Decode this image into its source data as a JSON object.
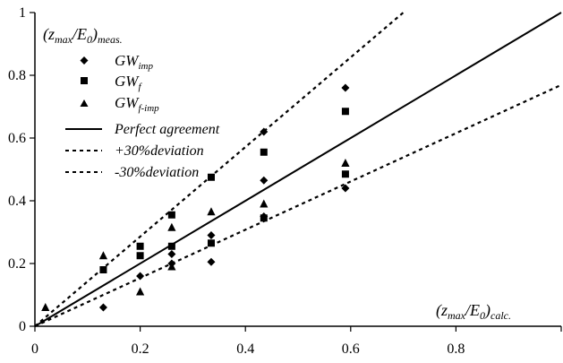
{
  "chart_data": {
    "type": "scatter",
    "xlim": [
      0,
      1
    ],
    "ylim": [
      0,
      1
    ],
    "grid": false,
    "legend_position": "top-left",
    "x_ticks": [
      "0",
      "0.2",
      "0.4",
      "0.6",
      "0.8"
    ],
    "x_tick_values": [
      0,
      0.2,
      0.4,
      0.6,
      0.8
    ],
    "y_ticks": [
      "0",
      "0.2",
      "0.4",
      "0.6",
      "0.8",
      "1"
    ],
    "y_tick_values": [
      0,
      0.2,
      0.4,
      0.6,
      0.8,
      1
    ],
    "ylabel": {
      "main": "(z",
      "sub1": "max",
      "mid": "/E",
      "sub2": "0",
      "close": ")",
      "sub3": "meas."
    },
    "xlabel": {
      "main": "(z",
      "sub1": "max",
      "mid": "/E",
      "sub2": "0",
      "close": ")",
      "sub3": "calc."
    },
    "series": [
      {
        "name": "GW",
        "name_sub": "imp",
        "marker": "diamond",
        "points": [
          [
            0.13,
            0.06
          ],
          [
            0.2,
            0.16
          ],
          [
            0.26,
            0.2
          ],
          [
            0.26,
            0.23
          ],
          [
            0.335,
            0.205
          ],
          [
            0.335,
            0.29
          ],
          [
            0.435,
            0.35
          ],
          [
            0.435,
            0.465
          ],
          [
            0.435,
            0.62
          ],
          [
            0.59,
            0.44
          ],
          [
            0.59,
            0.76
          ]
        ]
      },
      {
        "name": "GW",
        "name_sub": "f",
        "marker": "square",
        "points": [
          [
            0.13,
            0.18
          ],
          [
            0.2,
            0.225
          ],
          [
            0.2,
            0.255
          ],
          [
            0.26,
            0.255
          ],
          [
            0.26,
            0.355
          ],
          [
            0.335,
            0.265
          ],
          [
            0.335,
            0.475
          ],
          [
            0.435,
            0.345
          ],
          [
            0.435,
            0.555
          ],
          [
            0.59,
            0.485
          ],
          [
            0.59,
            0.685
          ]
        ]
      },
      {
        "name": "GW",
        "name_sub": "f-imp",
        "marker": "triangle",
        "points": [
          [
            0.02,
            0.06
          ],
          [
            0.13,
            0.225
          ],
          [
            0.2,
            0.11
          ],
          [
            0.26,
            0.19
          ],
          [
            0.26,
            0.315
          ],
          [
            0.335,
            0.365
          ],
          [
            0.435,
            0.39
          ],
          [
            0.59,
            0.52
          ]
        ]
      }
    ],
    "lines": [
      {
        "name": "Perfect agreement",
        "slope": 1.0,
        "style": "solid"
      },
      {
        "name": "+30%deviation",
        "slope": 1.4286,
        "style": "dashed"
      },
      {
        "name": "-30%deviation",
        "slope": 0.7692,
        "style": "dashed"
      }
    ]
  }
}
